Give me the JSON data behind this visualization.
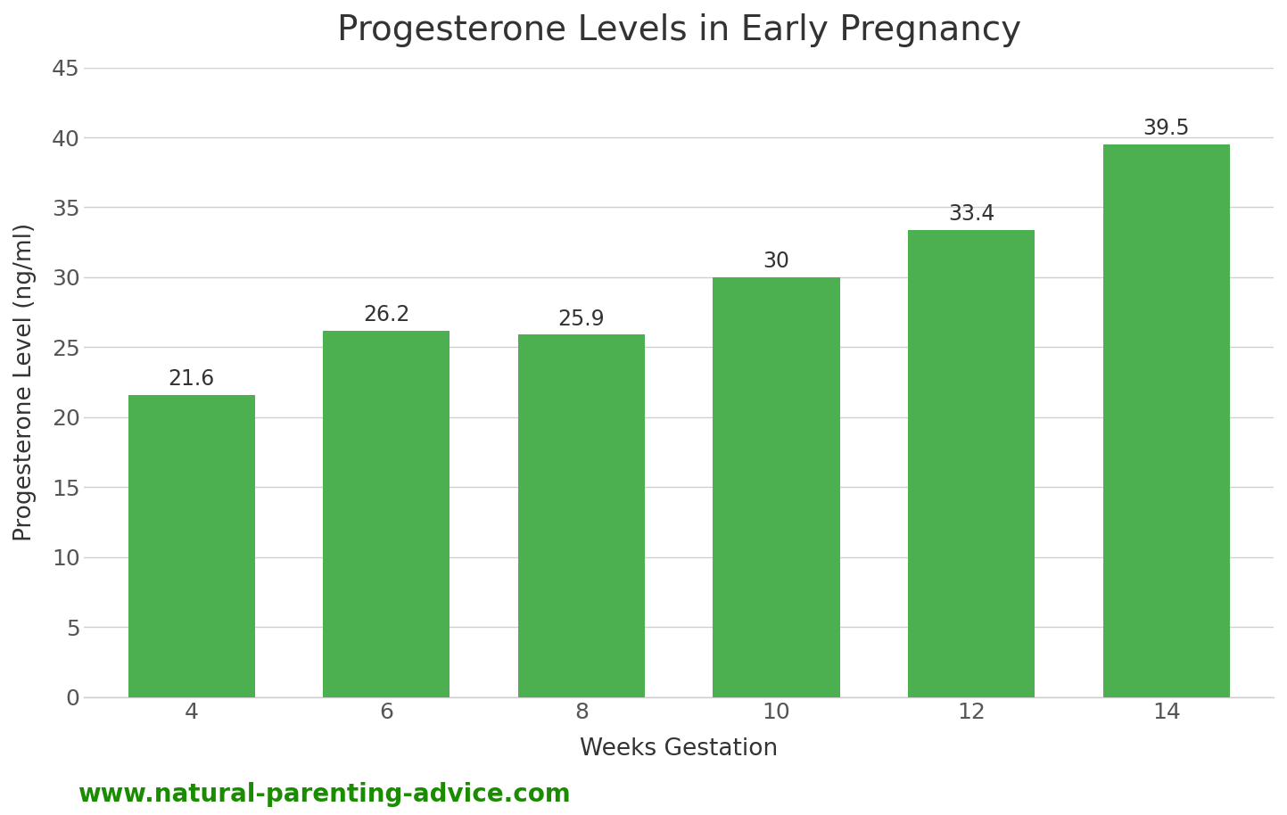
{
  "title": "Progesterone Levels in Early Pregnancy",
  "xlabel": "Weeks Gestation",
  "ylabel": "Progesterone Level (ng/ml)",
  "categories": [
    4,
    6,
    8,
    10,
    12,
    14
  ],
  "values": [
    21.6,
    26.2,
    25.9,
    30,
    33.4,
    39.5
  ],
  "bar_color": "#4caf50",
  "bar_width": 0.65,
  "ylim": [
    0,
    45
  ],
  "yticks": [
    0,
    5,
    10,
    15,
    20,
    25,
    30,
    35,
    40,
    45
  ],
  "title_fontsize": 28,
  "axis_label_fontsize": 19,
  "tick_fontsize": 18,
  "value_label_fontsize": 17,
  "background_color": "#ffffff",
  "grid_color": "#d0d0d0",
  "watermark_text": "www.natural-parenting-advice.com",
  "watermark_color": "#1a8c00",
  "watermark_fontsize": 20
}
